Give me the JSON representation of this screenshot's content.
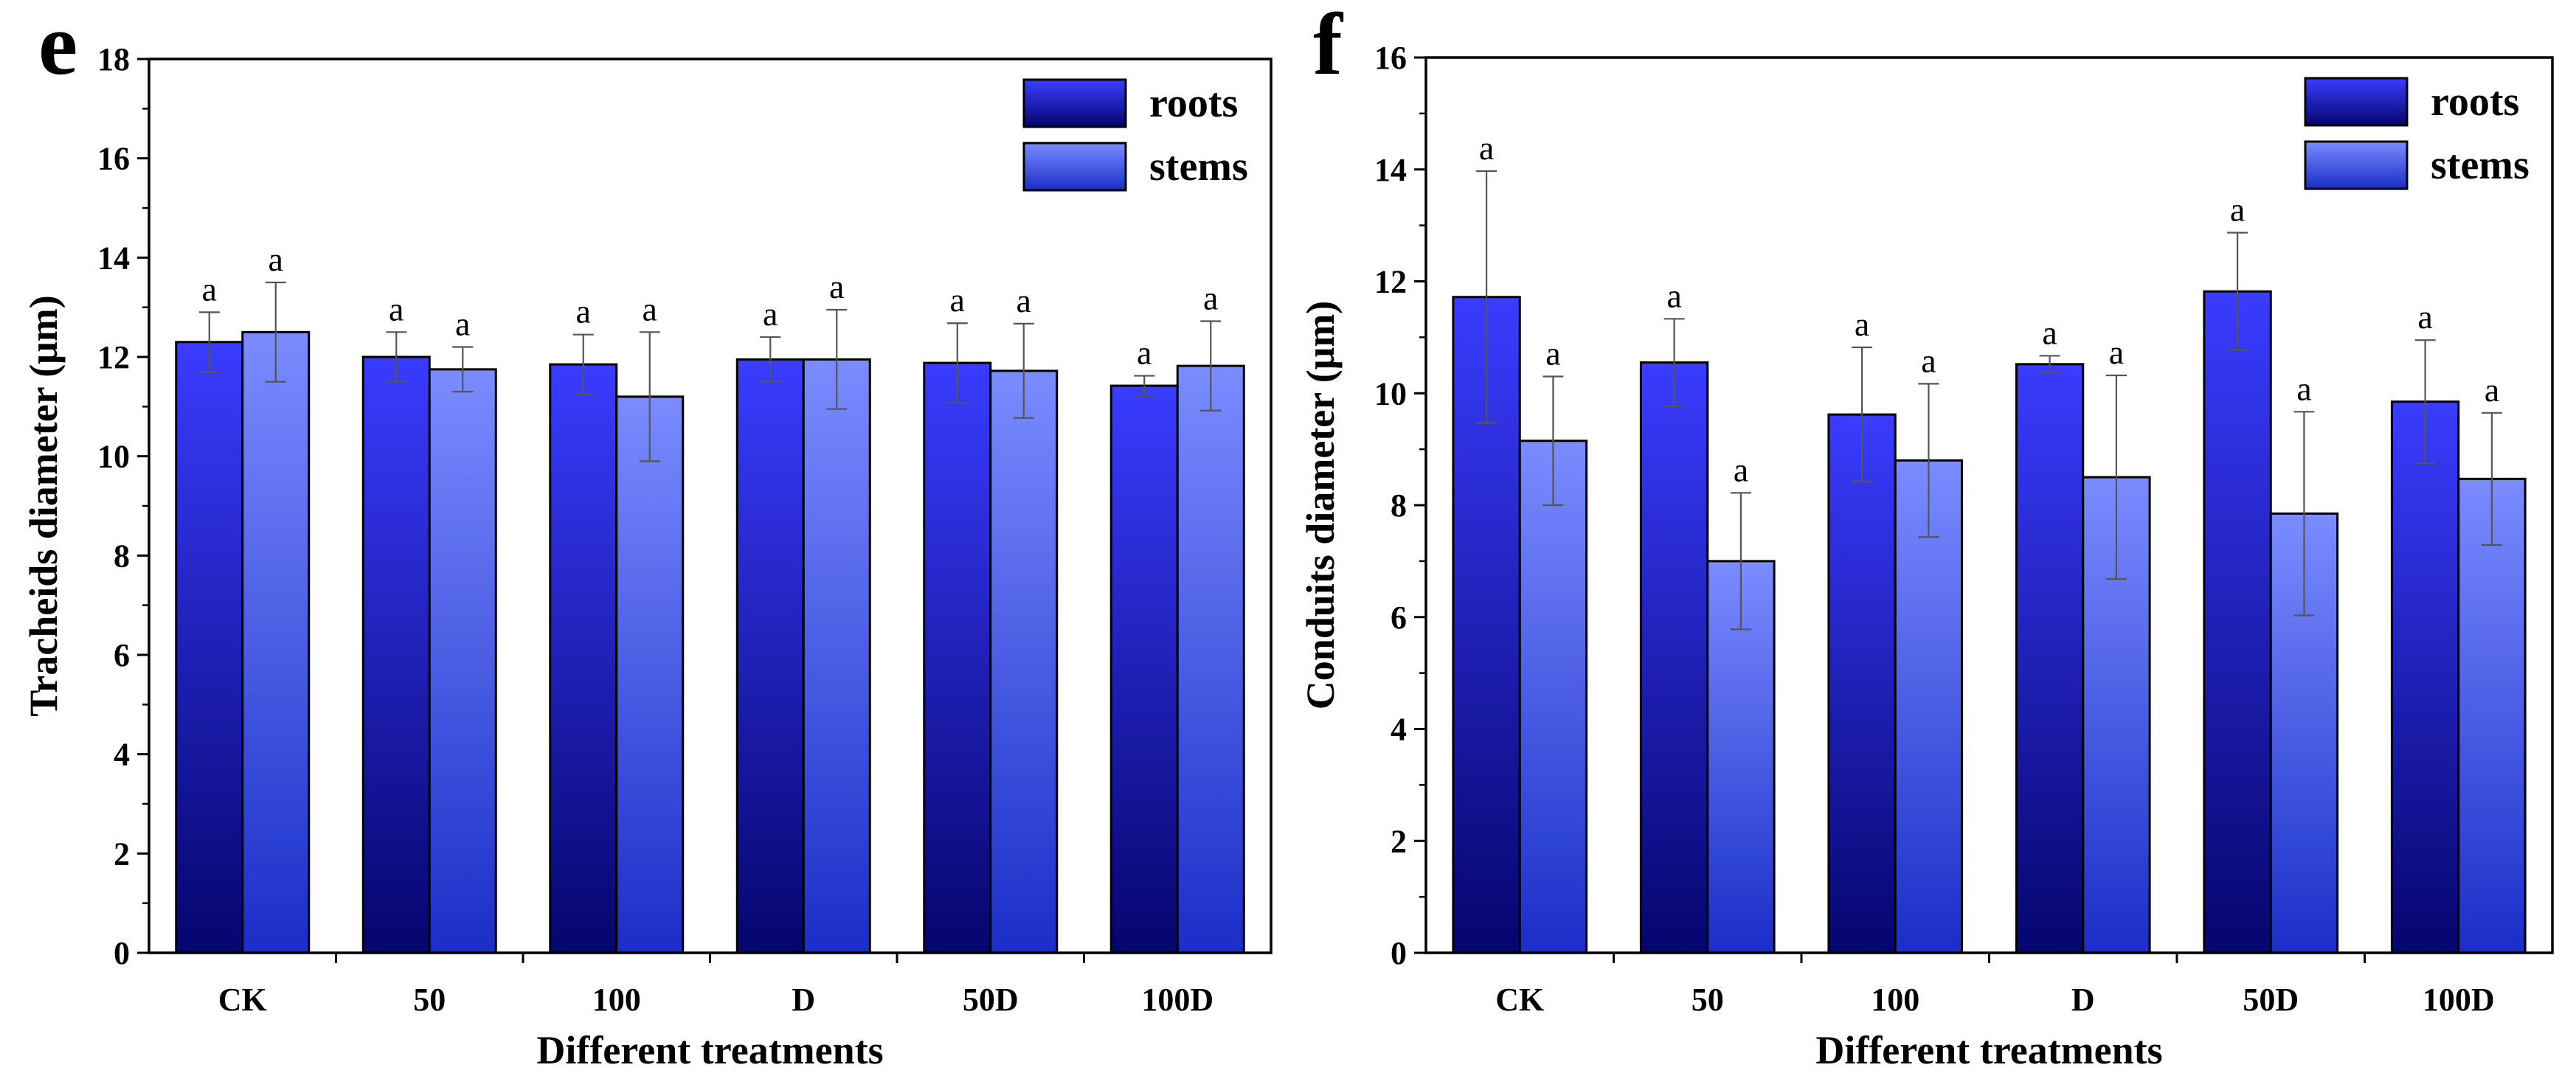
{
  "colors": {
    "roots_top": "#3a3cff",
    "roots_bottom": "#05056e",
    "stems_top": "#7a8cff",
    "stems_bottom": "#1a2ec8",
    "axis": "#000000",
    "error_bar": "#555555"
  },
  "chart_data": [
    {
      "type": "bar",
      "panel_label": "e",
      "xlabel": "Different treatments",
      "ylabel": "Tracheids diameter (μm)",
      "ylim": [
        0,
        18
      ],
      "yticks": [
        "0",
        "2",
        "4",
        "6",
        "8",
        "10",
        "12",
        "14",
        "16",
        "18"
      ],
      "categories": [
        "CK",
        "50",
        "100",
        "D",
        "50D",
        "100D"
      ],
      "legend_position": "top-right",
      "grid": false,
      "series": [
        {
          "name": "roots",
          "values": [
            12.3,
            12.0,
            11.85,
            11.95,
            11.88,
            11.42
          ],
          "errors": [
            0.6,
            0.5,
            0.6,
            0.45,
            0.8,
            0.2
          ],
          "labels": [
            "a",
            "a",
            "a",
            "a",
            "a",
            "a"
          ]
        },
        {
          "name": "stems",
          "values": [
            12.5,
            11.75,
            11.2,
            11.95,
            11.72,
            11.82
          ],
          "errors": [
            1.0,
            0.45,
            1.3,
            1.0,
            0.95,
            0.9
          ],
          "labels": [
            "a",
            "a",
            "a",
            "a",
            "a",
            "a"
          ]
        }
      ]
    },
    {
      "type": "bar",
      "panel_label": "f",
      "xlabel": "Different treatments",
      "ylabel": "Conduits diameter (μm)",
      "ylim": [
        0,
        16
      ],
      "yticks": [
        "0",
        "2",
        "4",
        "6",
        "8",
        "10",
        "12",
        "14",
        "16"
      ],
      "categories": [
        "CK",
        "50",
        "100",
        "D",
        "50D",
        "100D"
      ],
      "legend_position": "top-right",
      "grid": false,
      "series": [
        {
          "name": "roots",
          "values": [
            11.72,
            10.55,
            9.62,
            10.52,
            11.82,
            9.85
          ],
          "errors": [
            2.25,
            0.78,
            1.2,
            0.15,
            1.05,
            1.1
          ],
          "labels": [
            "a",
            "a",
            "a",
            "a",
            "a",
            "a"
          ]
        },
        {
          "name": "stems",
          "values": [
            9.15,
            7.0,
            8.8,
            8.5,
            7.85,
            8.47
          ],
          "errors": [
            1.15,
            1.22,
            1.37,
            1.82,
            1.82,
            1.18
          ],
          "labels": [
            "a",
            "a",
            "a",
            "a",
            "a",
            "a"
          ]
        }
      ]
    }
  ]
}
